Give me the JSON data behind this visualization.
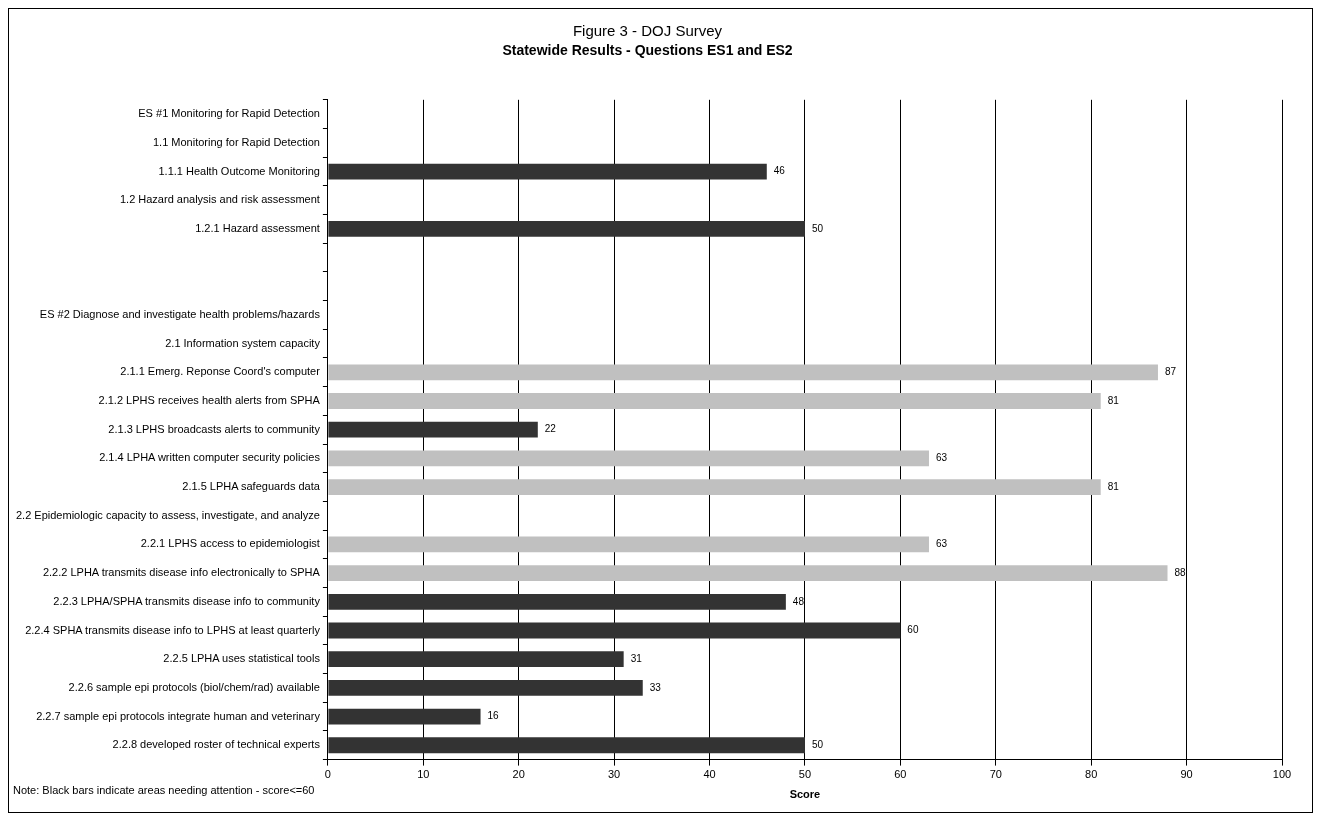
{
  "chart_data": {
    "type": "bar",
    "orientation": "horizontal",
    "title": "Figure 3 - DOJ Survey",
    "subtitle": "Statewide Results - Questions ES1 and ES2",
    "xlabel": "Score",
    "categories": [
      "ES #1 Monitoring for Rapid Detection",
      "1.1 Monitoring for Rapid Detection",
      "1.1.1 Health Outcome Monitoring",
      "1.2 Hazard analysis and risk assessment",
      "1.2.1 Hazard assessment",
      null,
      null,
      "ES #2 Diagnose and investigate health problems/hazards",
      "2.1 Information system capacity",
      "2.1.1 Emerg. Reponse Coord's computer",
      "2.1.2 LPHS receives health alerts from SPHA",
      "2.1.3 LPHS broadcasts alerts to community",
      "2.1.4 LPHA written computer security policies",
      "2.1.5 LPHA safeguards data",
      "2.2 Epidemiologic capacity to assess, investigate, and analyze",
      "2.2.1 LPHS access to epidemiologist",
      "2.2.2 LPHA transmits disease info electronically to SPHA",
      "2.2.3 LPHA/SPHA transmits disease info to community",
      "2.2.4 SPHA transmits disease info to LPHS at least quarterly",
      "2.2.5 LPHA uses statistical tools",
      "2.2.6 sample epi protocols (biol/chem/rad) available",
      "2.2.7 sample epi protocols integrate human and veterinary",
      "2.2.8 developed roster of technical experts"
    ],
    "values": [
      null,
      null,
      46,
      null,
      50,
      null,
      null,
      null,
      null,
      87,
      81,
      22,
      63,
      81,
      null,
      63,
      88,
      48,
      60,
      31,
      33,
      16,
      50
    ],
    "colors": [
      "#333333",
      "#333333",
      "#333333",
      "#333333",
      "#333333",
      "#333333",
      "#333333",
      "#333333",
      "#333333",
      "#c0c0c0",
      "#c0c0c0",
      "#333333",
      "#c0c0c0",
      "#c0c0c0",
      "#c0c0c0",
      "#c0c0c0",
      "#c0c0c0",
      "#333333",
      "#333333",
      "#333333",
      "#333333",
      "#333333",
      "#333333"
    ],
    "xlim": [
      0,
      100
    ],
    "xticks": [
      0,
      10,
      20,
      30,
      40,
      50,
      60,
      70,
      80,
      90,
      100
    ],
    "grid": "x",
    "data_labels": true,
    "legend": false,
    "annotations": [
      "Note: Black bars indicate areas needing attention - score<=60"
    ]
  }
}
